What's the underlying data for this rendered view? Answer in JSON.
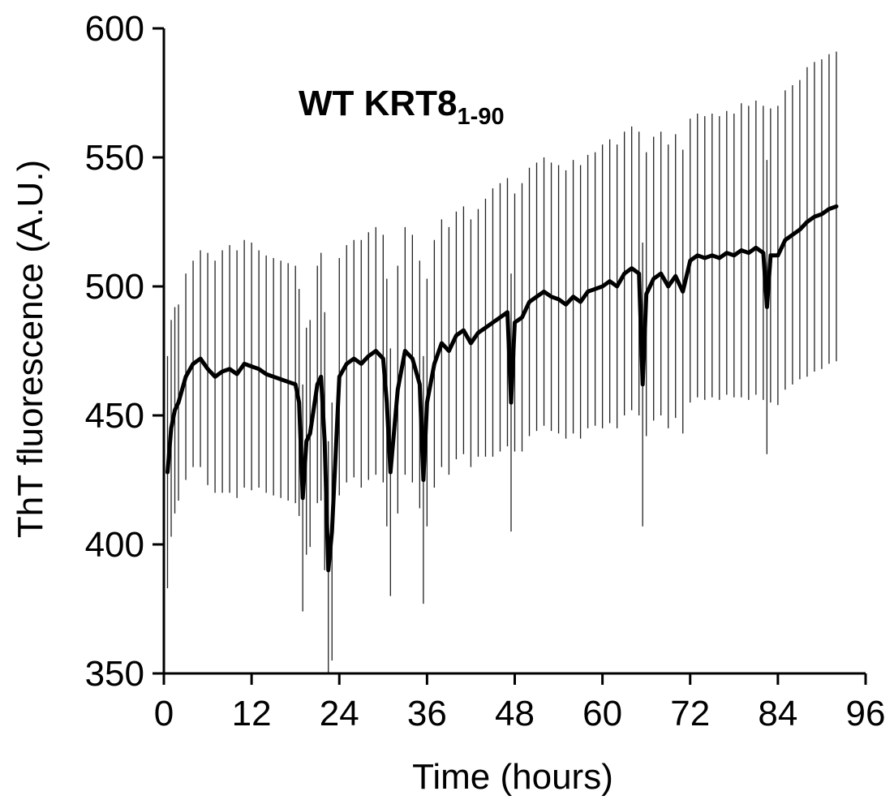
{
  "chart_data": {
    "type": "line",
    "title": "",
    "xlabel": "Time (hours)",
    "ylabel": "ThT fluorescence (A.U.)",
    "xlim": [
      0,
      96
    ],
    "ylim": [
      350,
      600
    ],
    "x_ticks": [
      0,
      12,
      24,
      36,
      48,
      60,
      72,
      84,
      96
    ],
    "y_ticks": [
      350,
      400,
      450,
      500,
      550,
      600
    ],
    "x_tick_labels": [
      "0",
      "12",
      "24",
      "36",
      "48",
      "60",
      "72",
      "84",
      "96"
    ],
    "y_tick_labels": [
      "350",
      "400",
      "450",
      "500",
      "550",
      "600"
    ],
    "grid": false,
    "annotation": {
      "main": "WT KRT8",
      "subscript": "1-90"
    },
    "colors": {
      "line": "#000000",
      "error_bars": "#222222",
      "axes": "#000000"
    },
    "series": [
      {
        "error_bars": true,
        "x": [
          0.5,
          1,
          1.5,
          2,
          3,
          4,
          5,
          6,
          7,
          8,
          9,
          10,
          11,
          12,
          13,
          14,
          15,
          16,
          17,
          18,
          18.5,
          19,
          19.5,
          20,
          21,
          21.5,
          22,
          22.5,
          23,
          24,
          25,
          26,
          27,
          28,
          29,
          30,
          30.5,
          31,
          32,
          33,
          34,
          35,
          35.5,
          36,
          37,
          38,
          39,
          40,
          41,
          42,
          43,
          44,
          45,
          46,
          47,
          47.5,
          48,
          49,
          50,
          51,
          52,
          53,
          54,
          55,
          56,
          57,
          58,
          59,
          60,
          61,
          62,
          63,
          64,
          65,
          65.5,
          66,
          67,
          68,
          69,
          70,
          71,
          72,
          73,
          74,
          75,
          76,
          77,
          78,
          79,
          80,
          81,
          82,
          82.5,
          83,
          84,
          85,
          86,
          87,
          88,
          89,
          90,
          91,
          92
        ],
        "y": [
          428,
          445,
          452,
          455,
          465,
          470,
          472,
          468,
          465,
          467,
          468,
          466,
          470,
          469,
          468,
          466,
          465,
          464,
          463,
          462,
          455,
          418,
          440,
          443,
          462,
          465,
          440,
          390,
          405,
          465,
          470,
          472,
          470,
          473,
          475,
          472,
          455,
          428,
          460,
          475,
          472,
          462,
          425,
          455,
          470,
          478,
          475,
          481,
          483,
          478,
          482,
          484,
          486,
          488,
          490,
          455,
          486,
          488,
          494,
          496,
          498,
          496,
          495,
          493,
          496,
          494,
          498,
          499,
          500,
          502,
          500,
          505,
          507,
          505,
          462,
          497,
          503,
          505,
          500,
          504,
          498,
          510,
          512,
          511,
          512,
          511,
          513,
          512,
          514,
          513,
          515,
          513,
          492,
          512,
          512,
          518,
          520,
          522,
          525,
          527,
          528,
          530,
          531
        ],
        "error": [
          45,
          42,
          40,
          38,
          40,
          40,
          42,
          45,
          45,
          47,
          48,
          48,
          48,
          48,
          46,
          46,
          46,
          46,
          46,
          46,
          44,
          44,
          44,
          44,
          46,
          48,
          50,
          50,
          50,
          46,
          46,
          46,
          48,
          48,
          48,
          48,
          48,
          48,
          48,
          48,
          48,
          48,
          48,
          48,
          48,
          48,
          48,
          48,
          48,
          48,
          48,
          50,
          52,
          52,
          52,
          50,
          50,
          52,
          52,
          52,
          52,
          52,
          52,
          52,
          53,
          53,
          53,
          53,
          55,
          55,
          55,
          55,
          55,
          55,
          55,
          55,
          55,
          55,
          55,
          55,
          55,
          55,
          55,
          55,
          55,
          55,
          55,
          55,
          57,
          57,
          57,
          57,
          57,
          57,
          58,
          58,
          58,
          58,
          60,
          60,
          60,
          60,
          60
        ]
      }
    ]
  }
}
